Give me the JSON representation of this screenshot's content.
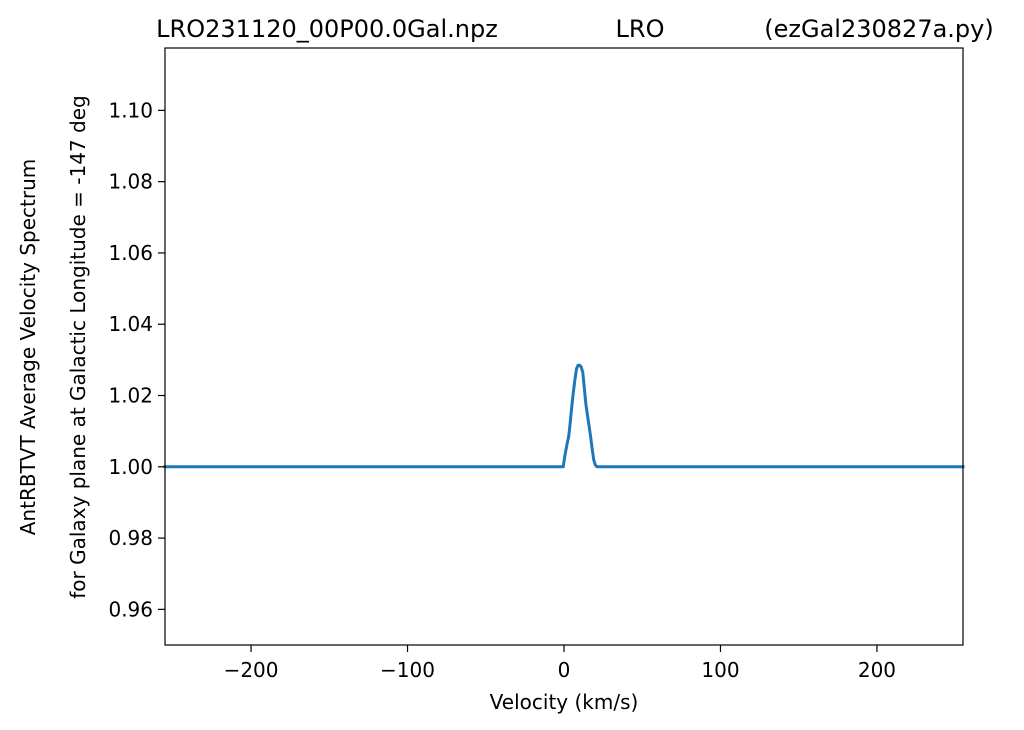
{
  "chart_data": {
    "type": "line",
    "title": {
      "left": "LRO231120_00P00.0Gal.npz",
      "center": "LRO",
      "right": "(ezGal230827a.py)"
    },
    "xlabel": "Velocity (km/s)",
    "ylabel": {
      "line1": "AntRBTVT Average Velocity Spectrum",
      "line2": "for Galaxy plane at Galactic Longitude = -147 deg"
    },
    "xlim": [
      -255,
      255
    ],
    "ylim": [
      0.95,
      1.1175
    ],
    "xticks": [
      -200,
      -100,
      0,
      100,
      200
    ],
    "xtick_labels": [
      "−200",
      "−100",
      "0",
      "100",
      "200"
    ],
    "yticks": [
      0.96,
      0.98,
      1.0,
      1.02,
      1.04,
      1.06,
      1.08,
      1.1
    ],
    "ytick_labels": [
      "0.96",
      "0.98",
      "1.00",
      "1.02",
      "1.04",
      "1.06",
      "1.08",
      "1.10"
    ],
    "grid": false,
    "series": [
      {
        "color": "#1f77b4",
        "x": [
          -255,
          -0.5,
          0.5,
          2,
          3,
          4,
          5,
          6,
          7,
          8,
          9,
          10,
          11,
          12,
          13,
          14,
          15,
          16,
          17,
          18,
          19,
          20,
          21,
          22,
          23,
          255
        ],
        "y": [
          1.0,
          1.0,
          1.003,
          1.0065,
          1.0085,
          1.0125,
          1.017,
          1.021,
          1.0245,
          1.0275,
          1.0285,
          1.0285,
          1.028,
          1.0265,
          1.022,
          1.0175,
          1.0145,
          1.0115,
          1.0085,
          1.005,
          1.002,
          1.0005,
          1.0,
          1.0,
          1.0,
          1.0
        ]
      }
    ]
  }
}
